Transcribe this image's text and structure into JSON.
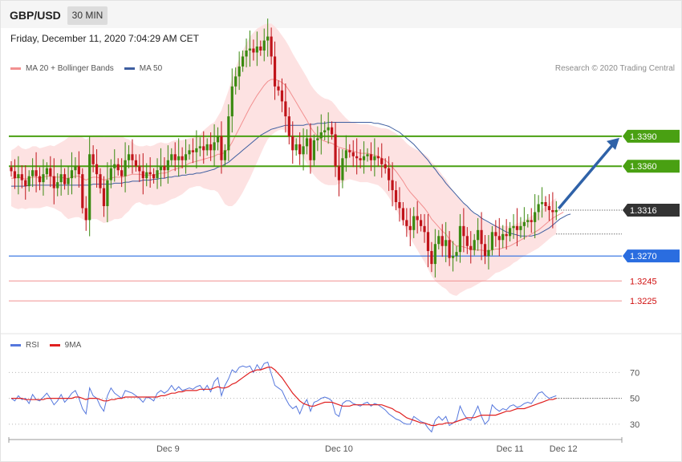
{
  "header": {
    "symbol": "GBP/USD",
    "timeframe": "30 MIN"
  },
  "timestamp": "Friday, December 11, 2020 7:04:29 AM CET",
  "credit": "Research © 2020 Trading Central",
  "colors": {
    "up": "#3a8a10",
    "down": "#c0141a",
    "ma20": "#f29090",
    "ma50": "#3e5ea0",
    "band": "#fde0e0",
    "resistance": "#49a012",
    "support": "#2a6de0",
    "support_light": "#f09090",
    "arrow": "#2f62a8",
    "rsi": "#5577dd",
    "rsi_ma": "#e02020"
  },
  "chart_data": [
    {
      "type": "candlestick",
      "legend": [
        {
          "label": "MA 20 + Bollinger Bands",
          "color": "#f29090"
        },
        {
          "label": "MA 50",
          "color": "#3e5ea0"
        }
      ],
      "ylim": [
        1.3205,
        1.348
      ],
      "x_tick_labels": [
        {
          "label": "Dec 9",
          "index": 44
        },
        {
          "label": "Dec 10",
          "index": 92
        },
        {
          "label": "Dec 11",
          "index": 140
        },
        {
          "label": "Dec 12",
          "index": 155
        }
      ],
      "levels": [
        {
          "value": 1.339,
          "label": "1.3390",
          "kind": "resistance"
        },
        {
          "value": 1.336,
          "label": "1.3360",
          "kind": "resistance"
        },
        {
          "value": 1.3316,
          "label": "1.3316",
          "kind": "current"
        },
        {
          "value": 1.327,
          "label": "1.3270",
          "kind": "support"
        },
        {
          "value": 1.3245,
          "label": "1.3245",
          "kind": "support_minor"
        },
        {
          "value": 1.3225,
          "label": "1.3225",
          "kind": "support_minor"
        }
      ],
      "close": [
        1.3355,
        1.3348,
        1.3352,
        1.3346,
        1.334,
        1.335,
        1.3356,
        1.335,
        1.3344,
        1.3352,
        1.3358,
        1.335,
        1.3338,
        1.3344,
        1.3352,
        1.3342,
        1.3348,
        1.3356,
        1.336,
        1.3352,
        1.3318,
        1.3306,
        1.3372,
        1.3362,
        1.3352,
        1.3338,
        1.332,
        1.3346,
        1.3358,
        1.3362,
        1.3356,
        1.335,
        1.3366,
        1.3372,
        1.3366,
        1.336,
        1.3355,
        1.3348,
        1.3354,
        1.3352,
        1.3348,
        1.3356,
        1.336,
        1.3356,
        1.3366,
        1.3372,
        1.3366,
        1.337,
        1.3366,
        1.3372,
        1.3376,
        1.3374,
        1.3378,
        1.338,
        1.3376,
        1.3382,
        1.3376,
        1.3384,
        1.339,
        1.3366,
        1.3376,
        1.341,
        1.344,
        1.345,
        1.346,
        1.347,
        1.3476,
        1.3478,
        1.3474,
        1.348,
        1.3476,
        1.3486,
        1.349,
        1.347,
        1.344,
        1.3436,
        1.3425,
        1.341,
        1.339,
        1.3376,
        1.3382,
        1.3372,
        1.338,
        1.3388,
        1.3366,
        1.3386,
        1.3388,
        1.3394,
        1.3396,
        1.3399,
        1.3392,
        1.336,
        1.3346,
        1.3368,
        1.3376,
        1.3374,
        1.337,
        1.3368,
        1.3366,
        1.337,
        1.3372,
        1.3366,
        1.337,
        1.3368,
        1.3362,
        1.3358,
        1.3346,
        1.3336,
        1.3324,
        1.3318,
        1.3306,
        1.33,
        1.3296,
        1.331,
        1.3306,
        1.33,
        1.3294,
        1.3275,
        1.3262,
        1.3282,
        1.329,
        1.328,
        1.3286,
        1.3268,
        1.327,
        1.3274,
        1.33,
        1.329,
        1.328,
        1.3276,
        1.3286,
        1.3296,
        1.3282,
        1.327,
        1.3276,
        1.3294,
        1.329,
        1.3286,
        1.3292,
        1.329,
        1.3298,
        1.33,
        1.3296,
        1.33,
        1.3304,
        1.3306,
        1.3304,
        1.3314,
        1.3322,
        1.3324,
        1.332,
        1.3316,
        1.3314,
        1.3316
      ],
      "ma20": [
        1.3348,
        1.3348,
        1.3349,
        1.3348,
        1.3347,
        1.3348,
        1.3349,
        1.3349,
        1.3348,
        1.3349,
        1.335,
        1.335,
        1.3349,
        1.3349,
        1.3349,
        1.3348,
        1.3348,
        1.3349,
        1.335,
        1.335,
        1.3348,
        1.3346,
        1.3348,
        1.3349,
        1.3349,
        1.3348,
        1.3346,
        1.3347,
        1.3348,
        1.3349,
        1.3349,
        1.3349,
        1.335,
        1.3351,
        1.3352,
        1.3352,
        1.3352,
        1.3351,
        1.3351,
        1.3351,
        1.3351,
        1.3352,
        1.3353,
        1.3353,
        1.3354,
        1.3356,
        1.3357,
        1.3358,
        1.3359,
        1.3361,
        1.3363,
        1.3364,
        1.3365,
        1.3366,
        1.3367,
        1.3368,
        1.3369,
        1.337,
        1.3372,
        1.3372,
        1.3374,
        1.3378,
        1.3384,
        1.3391,
        1.3398,
        1.3405,
        1.3412,
        1.3419,
        1.3425,
        1.3431,
        1.3436,
        1.3441,
        1.3445,
        1.3447,
        1.3447,
        1.3446,
        1.3444,
        1.3441,
        1.3436,
        1.343,
        1.3424,
        1.3418,
        1.3412,
        1.3406,
        1.3399,
        1.3394,
        1.339,
        1.3387,
        1.3385,
        1.3384,
        1.3383,
        1.3381,
        1.3379,
        1.3378,
        1.3377,
        1.3376,
        1.3375,
        1.3374,
        1.3373,
        1.3373,
        1.3373,
        1.3372,
        1.3371,
        1.337,
        1.3368,
        1.3366,
        1.3363,
        1.3359,
        1.3355,
        1.335,
        1.3345,
        1.3339,
        1.3334,
        1.333,
        1.3326,
        1.3322,
        1.3318,
        1.3313,
        1.3307,
        1.3303,
        1.3299,
        1.3295,
        1.3292,
        1.3287,
        1.3283,
        1.328,
        1.328,
        1.3279,
        1.3278,
        1.3277,
        1.3276,
        1.3276,
        1.3276,
        1.3275,
        1.3275,
        1.3276,
        1.3277,
        1.3277,
        1.3278,
        1.3279,
        1.328,
        1.3282,
        1.3284,
        1.3286,
        1.3288,
        1.329,
        1.3292,
        1.3294,
        1.3296,
        1.3299,
        1.3302,
        1.3305,
        1.3308,
        1.331,
        1.3312,
        1.3314
      ],
      "ma50": [
        1.334,
        1.334,
        1.334,
        1.334,
        1.334,
        1.3341,
        1.3341,
        1.3341,
        1.3341,
        1.3341,
        1.3341,
        1.3341,
        1.3341,
        1.3341,
        1.3341,
        1.3341,
        1.3341,
        1.3341,
        1.3341,
        1.3341,
        1.3341,
        1.3341,
        1.3341,
        1.3342,
        1.3342,
        1.3342,
        1.3342,
        1.3342,
        1.3342,
        1.3343,
        1.3343,
        1.3343,
        1.3344,
        1.3344,
        1.3345,
        1.3345,
        1.3345,
        1.3346,
        1.3346,
        1.3346,
        1.3347,
        1.3347,
        1.3348,
        1.3348,
        1.3349,
        1.3349,
        1.335,
        1.335,
        1.3351,
        1.3351,
        1.3352,
        1.3352,
        1.3353,
        1.3353,
        1.3354,
        1.3355,
        1.3356,
        1.3357,
        1.3359,
        1.336,
        1.3362,
        1.3364,
        1.3367,
        1.337,
        1.3373,
        1.3376,
        1.3379,
        1.3382,
        1.3385,
        1.3388,
        1.3391,
        1.3393,
        1.3395,
        1.3397,
        1.3398,
        1.3399,
        1.34,
        1.3401,
        1.3401,
        1.3401,
        1.3401,
        1.3401,
        1.3401,
        1.3402,
        1.3402,
        1.3402,
        1.3403,
        1.3403,
        1.3403,
        1.3404,
        1.3404,
        1.3404,
        1.3404,
        1.3404,
        1.3404,
        1.3404,
        1.3404,
        1.3404,
        1.3404,
        1.3404,
        1.3404,
        1.3404,
        1.3403,
        1.3403,
        1.3402,
        1.3401,
        1.34,
        1.3398,
        1.3396,
        1.3394,
        1.3391,
        1.3388,
        1.3385,
        1.3382,
        1.3378,
        1.3374,
        1.337,
        1.3366,
        1.3361,
        1.3357,
        1.3352,
        1.3348,
        1.3343,
        1.3339,
        1.3335,
        1.3331,
        1.3327,
        1.3323,
        1.332,
        1.3316,
        1.3313,
        1.3311,
        1.3308,
        1.3306,
        1.3304,
        1.3302,
        1.33,
        1.3298,
        1.3296,
        1.3294,
        1.3293,
        1.3292,
        1.3291,
        1.329,
        1.329,
        1.329,
        1.329,
        1.3291,
        1.3292,
        1.3294,
        1.3296,
        1.3298,
        1.3301,
        1.3304,
        1.3307,
        1.3309,
        1.3311,
        1.3312
      ],
      "bb_width": [
        0.0028,
        0.003,
        0.0032,
        0.003,
        0.003,
        0.003,
        0.0031,
        0.0031,
        0.003,
        0.003,
        0.003,
        0.0031,
        0.0031,
        0.0033,
        0.0035,
        0.0038,
        0.0041,
        0.0041,
        0.0041,
        0.0041,
        0.0041,
        0.0041,
        0.0041,
        0.0042,
        0.0042,
        0.0043,
        0.0043,
        0.0043,
        0.0043,
        0.0042,
        0.0042,
        0.0041,
        0.0038,
        0.0036,
        0.0032,
        0.0029,
        0.0028,
        0.0029,
        0.003,
        0.0029,
        0.003,
        0.0031,
        0.0031,
        0.003,
        0.0029,
        0.0029,
        0.0029,
        0.0028,
        0.0027,
        0.0026,
        0.0025,
        0.0025,
        0.0025,
        0.0026,
        0.0029,
        0.0031,
        0.0033,
        0.0034,
        0.0038,
        0.0044,
        0.0052,
        0.0058,
        0.0064,
        0.0068,
        0.007,
        0.0071,
        0.0071,
        0.0071,
        0.0069,
        0.0067,
        0.0064,
        0.0061,
        0.0058,
        0.0056,
        0.0053,
        0.005,
        0.0047,
        0.0045,
        0.0044,
        0.0043,
        0.0043,
        0.0043,
        0.0043,
        0.0043,
        0.0043,
        0.0043,
        0.0043,
        0.0043,
        0.0043,
        0.0043,
        0.0042,
        0.004,
        0.0037,
        0.0034,
        0.0031,
        0.0029,
        0.0029,
        0.0029,
        0.0029,
        0.0029,
        0.0029,
        0.0029,
        0.0029,
        0.0029,
        0.003,
        0.0032,
        0.0034,
        0.0036,
        0.0038,
        0.004,
        0.0042,
        0.0044,
        0.0046,
        0.0048,
        0.005,
        0.0052,
        0.0054,
        0.0056,
        0.0057,
        0.0058,
        0.0057,
        0.0056,
        0.0055,
        0.0054,
        0.0052,
        0.005,
        0.0047,
        0.0044,
        0.0041,
        0.0039,
        0.0036,
        0.0034,
        0.0032,
        0.003,
        0.0028,
        0.0026,
        0.0024,
        0.0023,
        0.0022,
        0.0021,
        0.002,
        0.0019,
        0.0019,
        0.0018,
        0.0018,
        0.0018,
        0.0018,
        0.0018,
        0.0018,
        0.0018,
        0.0018,
        0.0018,
        0.0018,
        0.0018,
        0.0018,
        0.0018
      ]
    },
    {
      "type": "line",
      "legend": [
        {
          "label": "RSI",
          "color": "#5577dd"
        },
        {
          "label": "9MA",
          "color": "#e02020"
        }
      ],
      "ylim": [
        20,
        82
      ],
      "y_tick_labels": [
        70,
        50,
        30
      ],
      "rsi": [
        50,
        48,
        52,
        49,
        50,
        46,
        53,
        49,
        48,
        51,
        54,
        50,
        45,
        48,
        53,
        47,
        50,
        54,
        56,
        50,
        42,
        38,
        58,
        52,
        50,
        44,
        40,
        52,
        58,
        54,
        52,
        50,
        56,
        55,
        54,
        52,
        50,
        47,
        51,
        50,
        48,
        54,
        56,
        54,
        56,
        60,
        56,
        59,
        56,
        57,
        58,
        57,
        59,
        60,
        56,
        60,
        55,
        63,
        66,
        52,
        60,
        65,
        72,
        70,
        74,
        75,
        74,
        75,
        70,
        76,
        72,
        77,
        78,
        69,
        60,
        58,
        56,
        50,
        45,
        42,
        44,
        38,
        45,
        49,
        40,
        47,
        48,
        50,
        51,
        50,
        48,
        38,
        36,
        46,
        48,
        48,
        46,
        45,
        44,
        46,
        47,
        44,
        46,
        45,
        43,
        41,
        38,
        36,
        34,
        33,
        31,
        30,
        30,
        36,
        34,
        32,
        31,
        27,
        24,
        33,
        36,
        33,
        36,
        29,
        31,
        33,
        44,
        38,
        34,
        33,
        38,
        44,
        36,
        30,
        33,
        45,
        42,
        40,
        42,
        41,
        44,
        45,
        43,
        44,
        46,
        47,
        46,
        50,
        54,
        55,
        52,
        50,
        51,
        52
      ],
      "rsi_ma": [
        50,
        50,
        50,
        50,
        49,
        49,
        49,
        49,
        49,
        49,
        50,
        50,
        50,
        50,
        50,
        50,
        50,
        50,
        51,
        51,
        50,
        49,
        50,
        50,
        50,
        49,
        48,
        48,
        49,
        49,
        50,
        50,
        51,
        51,
        51,
        51,
        51,
        51,
        51,
        51,
        51,
        51,
        52,
        52,
        53,
        54,
        54,
        55,
        55,
        56,
        56,
        56,
        56,
        57,
        57,
        57,
        57,
        58,
        59,
        58,
        58,
        59,
        61,
        62,
        64,
        66,
        68,
        70,
        71,
        72,
        72,
        73,
        74,
        74,
        72,
        69,
        66,
        62,
        58,
        54,
        51,
        48,
        46,
        45,
        44,
        44,
        45,
        46,
        47,
        47,
        47,
        46,
        45,
        44,
        44,
        44,
        45,
        45,
        45,
        45,
        45,
        45,
        45,
        45,
        45,
        44,
        43,
        42,
        40,
        39,
        37,
        35,
        34,
        33,
        32,
        31,
        31,
        30,
        29,
        29,
        30,
        30,
        31,
        31,
        31,
        32,
        33,
        34,
        35,
        35,
        35,
        36,
        37,
        37,
        37,
        37,
        37,
        38,
        39,
        40,
        40,
        41,
        42,
        42,
        42,
        43,
        44,
        45,
        46,
        47,
        48,
        49,
        49,
        50
      ]
    }
  ]
}
